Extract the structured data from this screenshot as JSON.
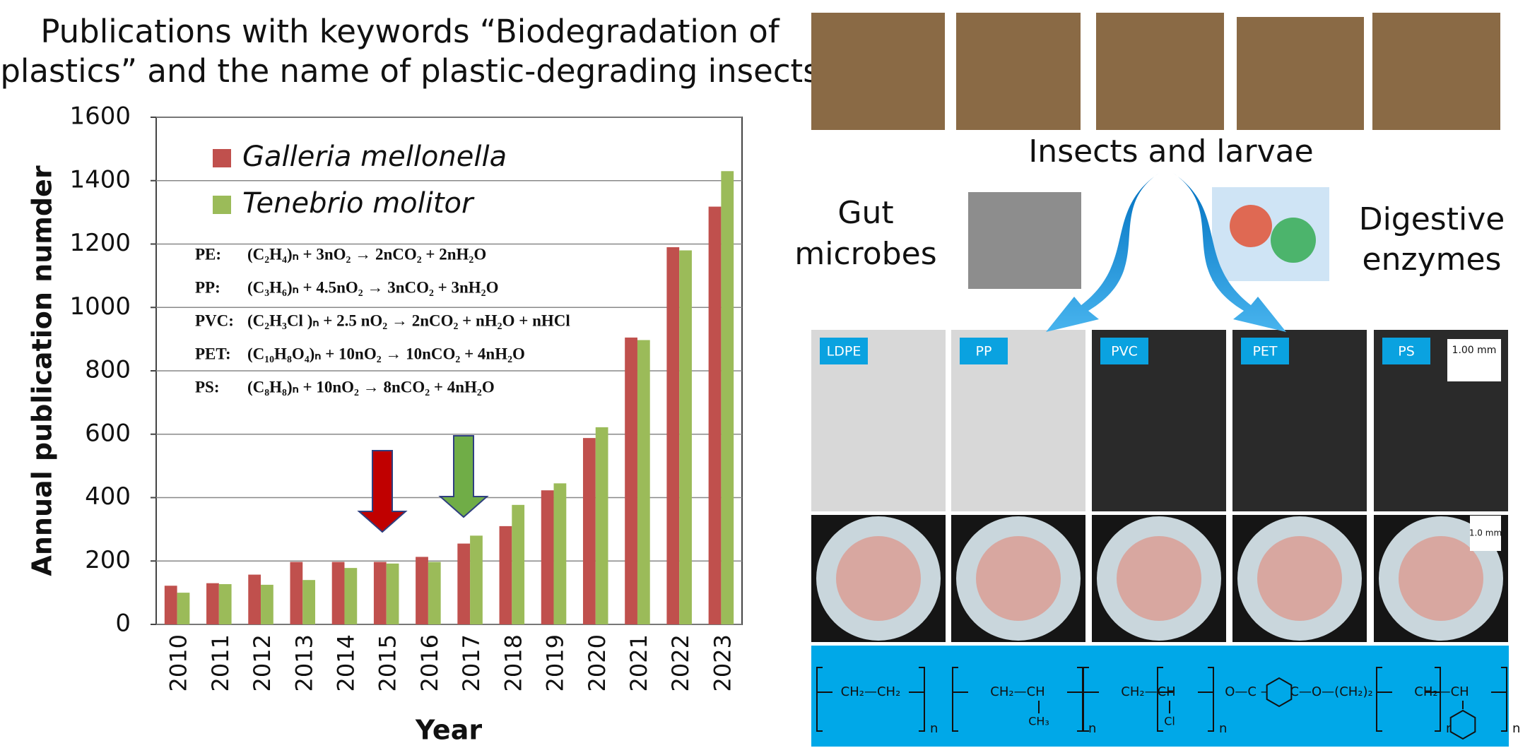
{
  "chart_data": {
    "type": "bar",
    "title": [
      "Publications with keywords “Biodegradation of",
      "plastics” and the name of plastic-degrading insects"
    ],
    "x_label": "Year",
    "y_label": "Annual publication numder",
    "categories": [
      "2010",
      "2011",
      "2012",
      "2013",
      "2014",
      "2015",
      "2016",
      "2017",
      "2018",
      "2019",
      "2020",
      "2021",
      "2022",
      "2023"
    ],
    "series": [
      {
        "name": "Galleria mellonella",
        "color": "#c0504d",
        "values": [
          122,
          130,
          157,
          197,
          197,
          197,
          213,
          255,
          310,
          423,
          588,
          905,
          1190,
          1318
        ]
      },
      {
        "name": "Tenebrio molitor",
        "color": "#9bbb59",
        "values": [
          100,
          127,
          125,
          140,
          178,
          192,
          197,
          280,
          377,
          445,
          622,
          897,
          1180,
          1430
        ]
      }
    ],
    "ylim": [
      0,
      1600
    ],
    "yticks": [
      0,
      200,
      400,
      600,
      800,
      1000,
      1200,
      1400,
      1600
    ],
    "grid": true,
    "legend": "upper left",
    "annotations": [
      {
        "label": "PE:",
        "equation": "(C₂H₄)ₙ + 3nO₂ → 2nCO₂ + 2nH₂O"
      },
      {
        "label": "PP:",
        "equation": "(C₃H₆)ₙ + 4.5nO₂ → 3nCO₂ + 3nH₂O"
      },
      {
        "label": "PVC:",
        "equation": "(C₂H₃Cl )ₙ + 2.5 nO₂ → 2nCO₂ + nH₂O + nHCl"
      },
      {
        "label": "PET:",
        "equation": "(C₁₀H₈O₄)ₙ + 10nO₂ → 10nCO₂ + 4nH₂O"
      },
      {
        "label": "PS:",
        "equation": "(C₈H₈)ₙ + 10nO₂ → 8nCO₂ + 4nH₂O"
      }
    ]
  },
  "figure": {
    "insects_label": "Insects and larvae",
    "gut_label": [
      "Gut",
      "microbes"
    ],
    "enzyme_label": [
      "Digestive",
      "enzymes"
    ],
    "plastics": [
      "LDPE",
      "PP",
      "PVC",
      "PET",
      "PS"
    ],
    "scale_bars": [
      "1.00 mm",
      "1.0 mm"
    ],
    "structures": [
      {
        "main": "CH₂—CH₂",
        "n": "n"
      },
      {
        "main": "CH₂—CH",
        "sub": "CH₃",
        "n": "n"
      },
      {
        "main": "CH₂—CH",
        "sub": "Cl",
        "n": "n"
      },
      {
        "main": "O—C —— C—O—(CH₂)₂",
        "n": "n"
      },
      {
        "main": "CH₂—CH",
        "n": "n"
      }
    ]
  }
}
